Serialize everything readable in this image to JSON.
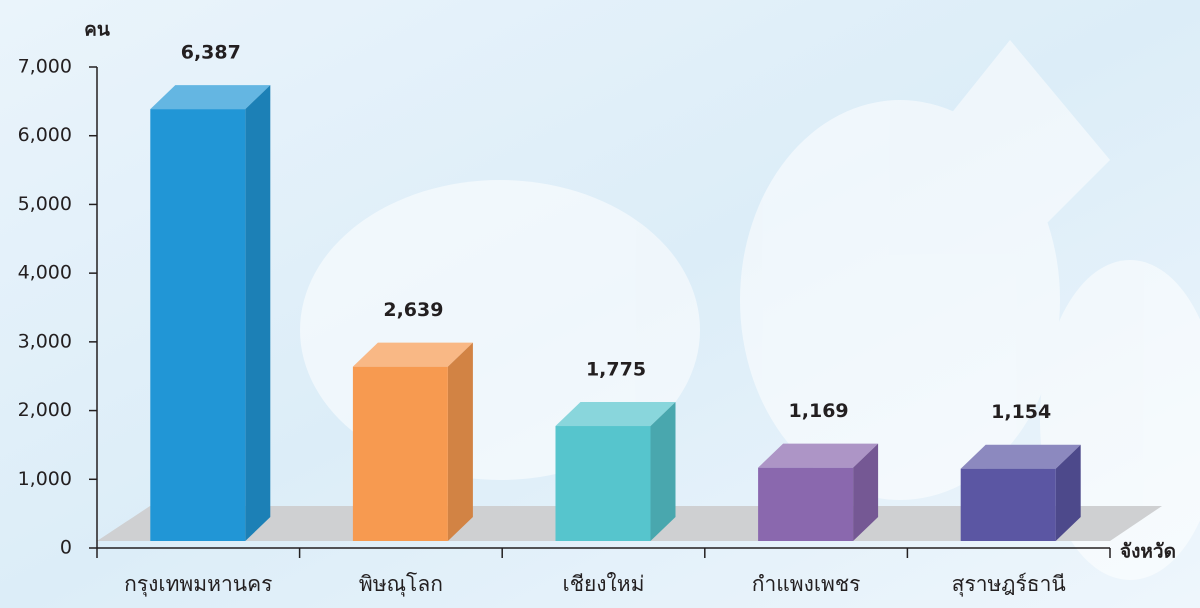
{
  "chart_data": {
    "type": "bar3d",
    "y_label": "คน",
    "x_label": "จังหวัด",
    "categories": [
      "กรุงเทพมหานคร",
      "พิษณุโลก",
      "เชียงใหม่",
      "กำแพงเพชร",
      "สุราษฎร์ธานี"
    ],
    "values": [
      6387,
      2639,
      1775,
      1169,
      1154
    ],
    "value_labels": [
      "6,387",
      "2,639",
      "1,775",
      "1,169",
      "1,154"
    ],
    "colors": [
      "#2196d6",
      "#f79a50",
      "#56c5cd",
      "#8a68ae",
      "#5b56a3"
    ],
    "ylim": [
      0,
      7000
    ],
    "yticks": [
      0,
      {
        "value": 1000,
        "label": "1,000"
      },
      {
        "value": 2000,
        "label": "2,000"
      },
      {
        "value": 3000,
        "label": "3,000"
      },
      {
        "value": 4000,
        "label": "4,000"
      },
      {
        "value": 5000,
        "label": "5,000"
      },
      {
        "value": 6000,
        "label": "6,000"
      },
      {
        "value": 7000,
        "label": "7,000"
      }
    ]
  }
}
